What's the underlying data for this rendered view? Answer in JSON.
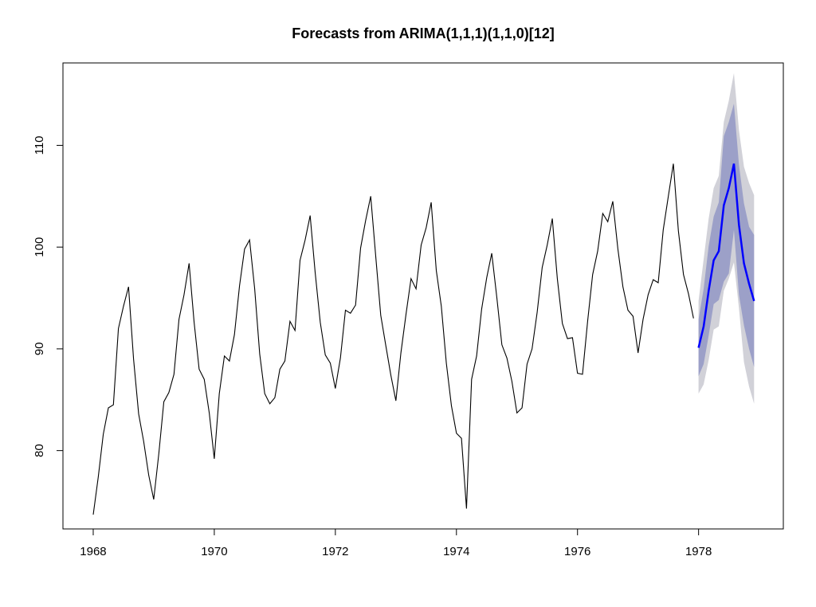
{
  "chart_data": {
    "type": "line",
    "title": "Forecasts from ARIMA(1,1,1)(1,1,0)[12]",
    "xlabel": "",
    "ylabel": "",
    "xlim": [
      1967.5,
      1979.4
    ],
    "ylim": [
      72.3,
      118.1
    ],
    "grid": false,
    "legend": "none",
    "x_ticks": [
      {
        "value": 1968,
        "label": "1968"
      },
      {
        "value": 1970,
        "label": "1970"
      },
      {
        "value": 1972,
        "label": "1972"
      },
      {
        "value": 1974,
        "label": "1974"
      },
      {
        "value": 1976,
        "label": "1976"
      },
      {
        "value": 1978,
        "label": "1978"
      }
    ],
    "y_ticks": [
      {
        "value": 80,
        "label": "80"
      },
      {
        "value": 90,
        "label": "90"
      },
      {
        "value": 100,
        "label": "100"
      },
      {
        "value": 110,
        "label": "110"
      }
    ],
    "colors": {
      "observed": "#000000",
      "forecast": "#0000ff",
      "band_95": "#d1d1d8",
      "band_80": "#9ca0c8"
    },
    "series": [
      {
        "role": "observed",
        "start": 1968,
        "frequency": 12,
        "values": [
          73.7,
          77.4,
          81.6,
          84.2,
          84.5,
          92.0,
          94.2,
          96.1,
          89.0,
          83.6,
          80.9,
          77.6,
          75.2,
          79.7,
          84.8,
          85.7,
          87.5,
          92.9,
          95.3,
          98.4,
          92.6,
          88.0,
          87.0,
          83.7,
          79.2,
          85.6,
          89.3,
          88.8,
          91.4,
          96.2,
          99.8,
          100.7,
          95.9,
          89.5,
          85.6,
          84.6,
          85.2,
          88.0,
          88.8,
          92.7,
          91.8,
          98.7,
          100.7,
          103.1,
          97.5,
          92.6,
          89.4,
          88.6,
          86.1,
          89.1,
          93.8,
          93.5,
          94.3,
          99.9,
          102.6,
          105.0,
          99.1,
          93.3,
          90.3,
          87.4,
          84.9,
          89.6,
          93.4,
          96.9,
          95.9,
          100.2,
          101.9,
          104.4,
          97.7,
          94.2,
          88.6,
          84.4,
          81.7,
          81.2,
          74.3,
          87.0,
          89.3,
          93.9,
          97.0,
          99.4,
          95.1,
          90.4,
          89.1,
          86.8,
          83.7,
          84.2,
          88.5,
          90.0,
          93.6,
          98.0,
          100.2,
          102.8,
          96.9,
          92.5,
          91.0,
          91.1,
          87.6,
          87.5,
          92.7,
          97.3,
          99.6,
          103.3,
          102.5,
          104.5,
          99.8,
          96.1,
          93.8,
          93.2,
          89.6,
          92.9,
          95.3,
          96.8,
          96.5,
          101.7,
          105.0,
          108.2,
          101.6,
          97.3,
          95.4,
          93.0
        ]
      },
      {
        "role": "forecast",
        "start": 1978,
        "frequency": 12,
        "values": [
          90.1,
          92.2,
          95.7,
          98.7,
          99.6,
          104.1,
          105.8,
          108.2,
          102.2,
          98.4,
          96.4,
          94.7
        ],
        "lo80": [
          87.3,
          88.5,
          91.3,
          94.4,
          94.8,
          96.6,
          97.4,
          101.7,
          95.3,
          92.3,
          90.0,
          88.2
        ],
        "hi80": [
          92.9,
          95.9,
          100.1,
          103.0,
          104.4,
          110.9,
          112.3,
          114.1,
          108.1,
          104.3,
          102.0,
          101.2
        ],
        "lo95": [
          85.6,
          86.5,
          88.9,
          91.9,
          92.2,
          95.7,
          96.9,
          98.5,
          94.0,
          88.7,
          86.3,
          84.6
        ],
        "hi95": [
          94.7,
          98.8,
          102.8,
          105.8,
          107.0,
          112.3,
          114.4,
          117.1,
          111.5,
          107.9,
          106.3,
          105.1
        ]
      }
    ]
  }
}
